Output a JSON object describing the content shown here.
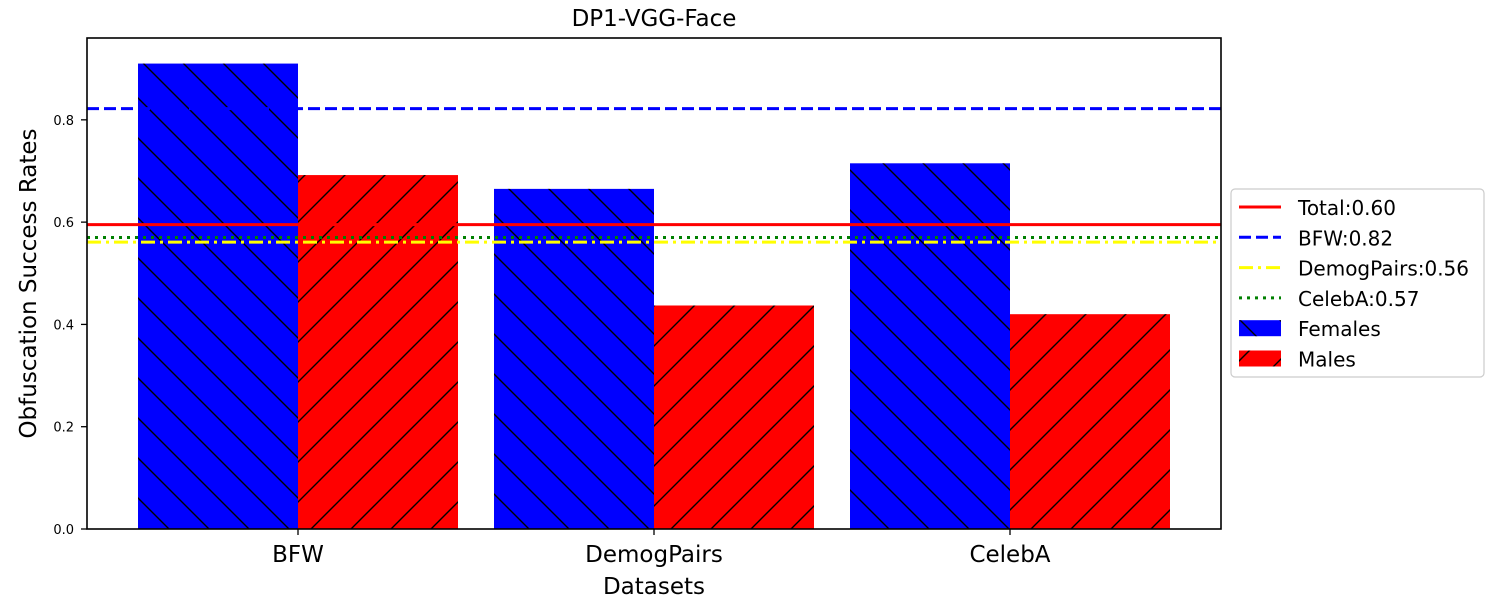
{
  "chart_data": {
    "type": "bar",
    "title": "DP1-VGG-Face",
    "xlabel": "Datasets",
    "ylabel": "Obfuscation Success Rates",
    "categories": [
      "BFW",
      "DemogPairs",
      "CelebA"
    ],
    "ylim": [
      0,
      0.96
    ],
    "yticks": [
      0.0,
      0.2,
      0.4,
      0.6,
      0.8
    ],
    "ytick_labels": [
      "0.0",
      "0.2",
      "0.4",
      "0.6",
      "0.8"
    ],
    "grid": false,
    "legend_position": "right (outside)",
    "series": [
      {
        "name": "Females",
        "values": [
          0.91,
          0.665,
          0.715
        ],
        "color": "#0000ff",
        "hatch": "backslash"
      },
      {
        "name": "Males",
        "values": [
          0.692,
          0.437,
          0.42
        ],
        "color": "#ff0000",
        "hatch": "slash"
      }
    ],
    "reference_lines": [
      {
        "label": "Total:0.60",
        "value": 0.595,
        "color": "#ff0000",
        "style": "solid"
      },
      {
        "label": "BFW:0.82",
        "value": 0.822,
        "color": "#0000ff",
        "style": "dashed"
      },
      {
        "label": "DemogPairs:0.56",
        "value": 0.561,
        "color": "#ffff00",
        "style": "dashdot"
      },
      {
        "label": "CelebA:0.57",
        "value": 0.57,
        "color": "#008000",
        "style": "dotted"
      }
    ]
  }
}
